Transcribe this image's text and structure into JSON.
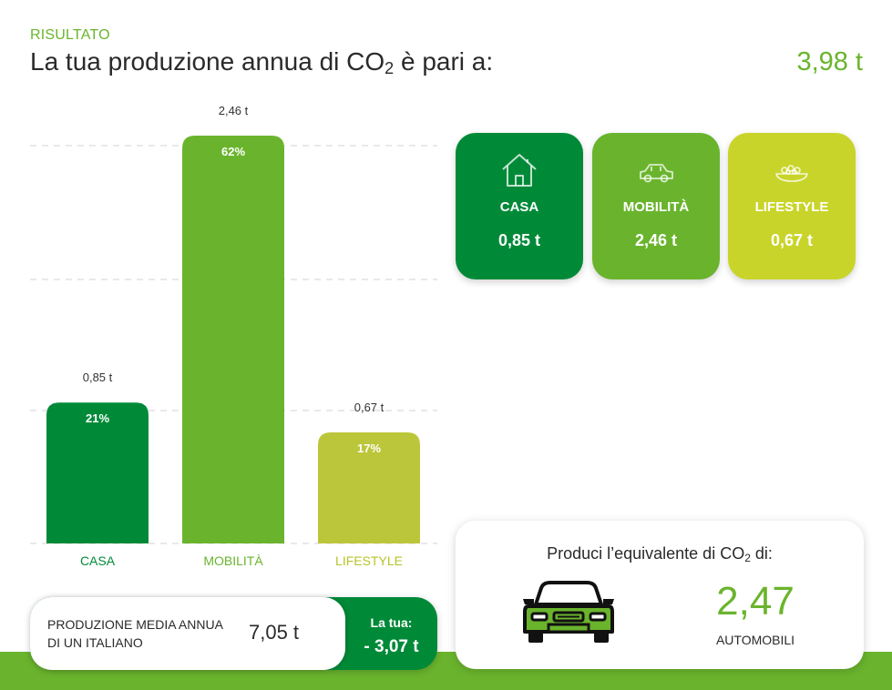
{
  "header": {
    "kicker": "RISULTATO",
    "headline_prefix": "La tua produzione annua di CO",
    "headline_sub": "2",
    "headline_suffix": " è pari a:",
    "total": "3,98 t"
  },
  "chart_data": {
    "type": "bar",
    "categories": [
      "CASA",
      "MOBILITÀ",
      "LIFESTYLE"
    ],
    "values": [
      0.85,
      2.46,
      0.67
    ],
    "value_labels": [
      "0,85 t",
      "2,46 t",
      "0,67 t"
    ],
    "percent_labels": [
      "21%",
      "62%",
      "17%"
    ],
    "colors": [
      "#008a38",
      "#6ab42d",
      "#bcc63a"
    ],
    "label_colors": [
      "#008a38",
      "#6ab42d",
      "#b8c32a"
    ],
    "title": "",
    "xlabel": "",
    "ylabel": "",
    "ylim": [
      0,
      2.46
    ],
    "grid": "dashed",
    "gridlines": [
      0,
      0.5,
      1,
      1.5,
      2,
      2.5
    ]
  },
  "category_cards": [
    {
      "label": "CASA",
      "value": "0,85 t",
      "icon": "house-icon",
      "color": "#008a38"
    },
    {
      "label": "MOBILITÀ",
      "value": "2,46 t",
      "icon": "car-icon",
      "color": "#6ab42d"
    },
    {
      "label": "LIFESTYLE",
      "value": "0,67 t",
      "icon": "food-bowl-icon",
      "color": "#c9d42a"
    }
  ],
  "equivalent": {
    "title_prefix": "Produci l’equivalente di CO",
    "title_sub": "2",
    "title_suffix": " di:",
    "value": "2,47",
    "unit": "AUTOMOBILI",
    "icon": "car-front-icon"
  },
  "average": {
    "label": "PRODUZIONE MEDIA ANNUA DI UN ITALIANO",
    "value": "7,05 t",
    "your_label": "La tua:",
    "your_value": "- 3,07 t"
  },
  "colors": {
    "accent": "#6ab42d",
    "dark_green": "#008a38",
    "lime": "#c9d42a"
  }
}
